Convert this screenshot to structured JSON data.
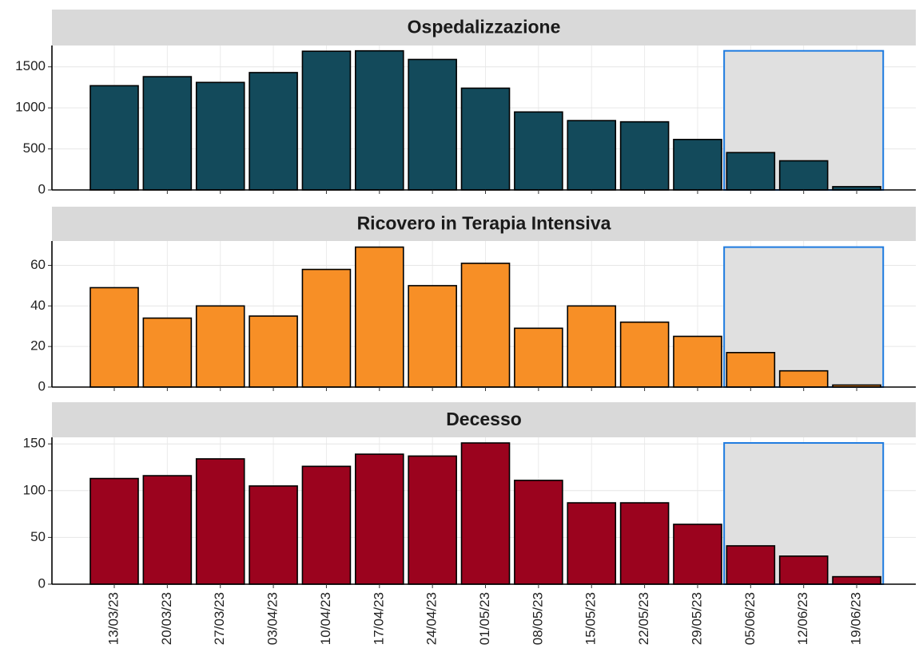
{
  "chart_data": {
    "type": "bar",
    "categories": [
      "13/03/23",
      "20/03/23",
      "27/03/23",
      "03/04/23",
      "10/04/23",
      "17/04/23",
      "24/04/23",
      "01/05/23",
      "08/05/23",
      "15/05/23",
      "22/05/23",
      "29/05/23",
      "05/06/23",
      "12/06/23",
      "19/06/23"
    ],
    "highlight": [
      "05/06/23",
      "19/06/23"
    ],
    "highlight_color": "#1e7be0",
    "grid": true,
    "panels": [
      {
        "title": "Ospedalizzazione",
        "color": "#134a5b",
        "values": [
          1270,
          1380,
          1310,
          1430,
          1690,
          1695,
          1590,
          1240,
          950,
          845,
          830,
          615,
          455,
          355,
          40
        ],
        "ylim": [
          0,
          1760
        ],
        "yticks": [
          0,
          500,
          1000,
          1500
        ]
      },
      {
        "title": "Ricovero in Terapia Intensiva",
        "color": "#f78f26",
        "values": [
          49,
          34,
          40,
          35,
          58,
          69,
          50,
          61,
          29,
          40,
          32,
          25,
          17,
          8,
          1
        ],
        "ylim": [
          0,
          72
        ],
        "yticks": [
          0,
          20,
          40,
          60
        ]
      },
      {
        "title": "Decesso",
        "color": "#9b031e",
        "values": [
          113,
          116,
          134,
          105,
          126,
          139,
          137,
          151,
          111,
          87,
          87,
          64,
          41,
          30,
          8
        ],
        "ylim": [
          0,
          157
        ],
        "yticks": [
          0,
          50,
          100,
          150
        ]
      }
    ]
  }
}
